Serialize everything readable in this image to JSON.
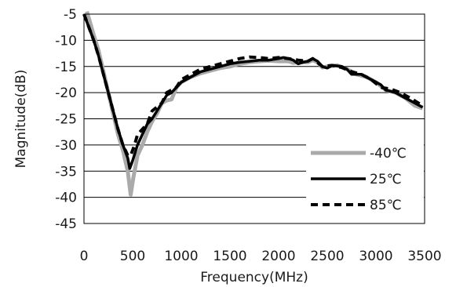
{
  "chart_data": {
    "type": "line",
    "title": "",
    "xlabel": "Frequency(MHz)",
    "ylabel": "Magnitude(dB)",
    "xlim": [
      0,
      3500
    ],
    "ylim": [
      -45,
      -5
    ],
    "xticks": [
      0,
      500,
      1000,
      1500,
      2000,
      2500,
      3000,
      3500
    ],
    "yticks": [
      -5,
      -10,
      -15,
      -20,
      -25,
      -30,
      -35,
      -40,
      -45
    ],
    "x_tick_labels": [
      "0",
      "500",
      "1000",
      "1500",
      "2000",
      "2500",
      "3000",
      "3500"
    ],
    "y_tick_labels": [
      "-5",
      "-10",
      "-15",
      "-20",
      "-25",
      "-30",
      "-35",
      "-40",
      "-45"
    ],
    "grid": "horizontal",
    "legend_position": "bottom-right",
    "series": [
      {
        "name": "-40℃",
        "color": "#aaaaaa",
        "style": "solid-thick",
        "points": [
          [
            30,
            -4.5
          ],
          [
            100,
            -9
          ],
          [
            150,
            -12
          ],
          [
            200,
            -16
          ],
          [
            250,
            -20
          ],
          [
            300,
            -24
          ],
          [
            350,
            -28
          ],
          [
            400,
            -31
          ],
          [
            450,
            -35
          ],
          [
            480,
            -39.5
          ],
          [
            510,
            -36
          ],
          [
            550,
            -32
          ],
          [
            600,
            -30
          ],
          [
            650,
            -27.5
          ],
          [
            700,
            -25.5
          ],
          [
            750,
            -24
          ],
          [
            800,
            -22
          ],
          [
            850,
            -21.5
          ],
          [
            900,
            -21.3
          ],
          [
            950,
            -19
          ],
          [
            1000,
            -18
          ],
          [
            1100,
            -17
          ],
          [
            1200,
            -16.3
          ],
          [
            1300,
            -15.8
          ],
          [
            1400,
            -15.3
          ],
          [
            1500,
            -15
          ],
          [
            1600,
            -14.5
          ],
          [
            1700,
            -14.2
          ],
          [
            1800,
            -14
          ],
          [
            1900,
            -13.9
          ],
          [
            2000,
            -14
          ],
          [
            2100,
            -14
          ],
          [
            2150,
            -14.3
          ],
          [
            2200,
            -14.2
          ],
          [
            2300,
            -14.2
          ],
          [
            2350,
            -13.8
          ],
          [
            2400,
            -14.2
          ],
          [
            2450,
            -15.2
          ],
          [
            2500,
            -15
          ],
          [
            2600,
            -14.8
          ],
          [
            2700,
            -15.5
          ],
          [
            2800,
            -16.5
          ],
          [
            2900,
            -17
          ],
          [
            3000,
            -18
          ],
          [
            3100,
            -19.5
          ],
          [
            3200,
            -20
          ],
          [
            3300,
            -21
          ],
          [
            3400,
            -22.5
          ],
          [
            3480,
            -23
          ]
        ]
      },
      {
        "name": "25℃",
        "color": "#000000",
        "style": "solid",
        "points": [
          [
            0,
            -5
          ],
          [
            100,
            -10
          ],
          [
            150,
            -13
          ],
          [
            200,
            -16.5
          ],
          [
            250,
            -20
          ],
          [
            300,
            -23.5
          ],
          [
            350,
            -27
          ],
          [
            400,
            -30
          ],
          [
            450,
            -32.5
          ],
          [
            470,
            -34.5
          ],
          [
            500,
            -33
          ],
          [
            550,
            -30
          ],
          [
            600,
            -28
          ],
          [
            650,
            -26
          ],
          [
            700,
            -25
          ],
          [
            750,
            -23.5
          ],
          [
            800,
            -22
          ],
          [
            850,
            -20.5
          ],
          [
            900,
            -20
          ],
          [
            1000,
            -18
          ],
          [
            1100,
            -17
          ],
          [
            1200,
            -16
          ],
          [
            1300,
            -15.5
          ],
          [
            1400,
            -15
          ],
          [
            1500,
            -14.5
          ],
          [
            1600,
            -14.2
          ],
          [
            1700,
            -14
          ],
          [
            1800,
            -13.8
          ],
          [
            1900,
            -13.8
          ],
          [
            2000,
            -13.5
          ],
          [
            2050,
            -13.3
          ],
          [
            2100,
            -13.5
          ],
          [
            2150,
            -13.8
          ],
          [
            2200,
            -14.5
          ],
          [
            2250,
            -14.2
          ],
          [
            2300,
            -14
          ],
          [
            2350,
            -13.5
          ],
          [
            2400,
            -14
          ],
          [
            2450,
            -15
          ],
          [
            2500,
            -15.3
          ],
          [
            2550,
            -14.8
          ],
          [
            2650,
            -15
          ],
          [
            2700,
            -15.5
          ],
          [
            2750,
            -16.5
          ],
          [
            2850,
            -16.5
          ],
          [
            2950,
            -17.5
          ],
          [
            3050,
            -18.5
          ],
          [
            3100,
            -19.5
          ],
          [
            3200,
            -20
          ],
          [
            3300,
            -21
          ],
          [
            3400,
            -22
          ],
          [
            3480,
            -22.8
          ]
        ]
      },
      {
        "name": "85℃",
        "color": "#000000",
        "style": "dashed",
        "points": [
          [
            0,
            -5
          ],
          [
            100,
            -10
          ],
          [
            150,
            -13
          ],
          [
            200,
            -16.5
          ],
          [
            250,
            -20
          ],
          [
            300,
            -23.5
          ],
          [
            350,
            -27
          ],
          [
            400,
            -30
          ],
          [
            450,
            -32
          ],
          [
            480,
            -32
          ],
          [
            520,
            -30
          ],
          [
            550,
            -28
          ],
          [
            650,
            -26
          ],
          [
            700,
            -23.5
          ],
          [
            800,
            -22
          ],
          [
            850,
            -20
          ],
          [
            950,
            -19
          ],
          [
            1000,
            -17.5
          ],
          [
            1100,
            -16.5
          ],
          [
            1200,
            -15.5
          ],
          [
            1300,
            -15
          ],
          [
            1400,
            -14.5
          ],
          [
            1500,
            -14
          ],
          [
            1600,
            -13.5
          ],
          [
            1700,
            -13.2
          ],
          [
            1800,
            -13.3
          ],
          [
            1900,
            -13.5
          ],
          [
            2000,
            -13.3
          ],
          [
            2100,
            -13.5
          ],
          [
            2200,
            -13.8
          ],
          [
            2300,
            -14
          ],
          [
            2350,
            -13.5
          ],
          [
            2450,
            -15
          ],
          [
            2550,
            -14.8
          ],
          [
            2650,
            -15.2
          ],
          [
            2750,
            -16
          ],
          [
            2850,
            -16.5
          ],
          [
            2950,
            -17.5
          ],
          [
            3050,
            -19
          ],
          [
            3150,
            -19.3
          ],
          [
            3250,
            -20
          ],
          [
            3350,
            -21
          ],
          [
            3480,
            -22.5
          ]
        ]
      }
    ]
  }
}
